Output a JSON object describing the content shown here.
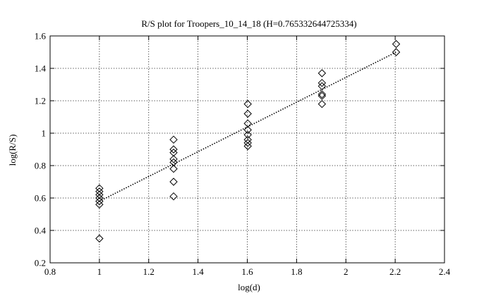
{
  "chart_data": {
    "type": "scatter",
    "title": "R/S plot for Troopers_10_14_18 (H=0.765332644725334)",
    "xlabel": "log(d)",
    "ylabel": "log(R/S)",
    "xlim": [
      0.8,
      2.4
    ],
    "ylim": [
      0.2,
      1.6
    ],
    "grid": true,
    "x_ticks": [
      0.8,
      1,
      1.2,
      1.4,
      1.6,
      1.8,
      2,
      2.2,
      2.4
    ],
    "x_tick_labels": [
      "0.8",
      "1",
      "1.2",
      "1.4",
      "1.6",
      "1.8",
      "2",
      "2.2",
      "2.4"
    ],
    "y_ticks": [
      0.2,
      0.4,
      0.6,
      0.8,
      1,
      1.2,
      1.4,
      1.6
    ],
    "y_tick_labels": [
      "0.2",
      "0.4",
      "0.6",
      "0.8",
      "1",
      "1.2",
      "1.4",
      "1.6"
    ],
    "series": [
      {
        "marker": "diamond",
        "points": [
          {
            "x": 1.0,
            "y": 0.66
          },
          {
            "x": 1.0,
            "y": 0.64
          },
          {
            "x": 1.0,
            "y": 0.62
          },
          {
            "x": 1.0,
            "y": 0.6
          },
          {
            "x": 1.0,
            "y": 0.58
          },
          {
            "x": 1.0,
            "y": 0.56
          },
          {
            "x": 1.0,
            "y": 0.35
          },
          {
            "x": 1.301,
            "y": 0.96
          },
          {
            "x": 1.301,
            "y": 0.9
          },
          {
            "x": 1.301,
            "y": 0.88
          },
          {
            "x": 1.301,
            "y": 0.84
          },
          {
            "x": 1.301,
            "y": 0.82
          },
          {
            "x": 1.301,
            "y": 0.78
          },
          {
            "x": 1.301,
            "y": 0.7
          },
          {
            "x": 1.301,
            "y": 0.61
          },
          {
            "x": 1.602,
            "y": 1.18
          },
          {
            "x": 1.602,
            "y": 1.12
          },
          {
            "x": 1.602,
            "y": 1.06
          },
          {
            "x": 1.602,
            "y": 1.02
          },
          {
            "x": 1.602,
            "y": 0.99
          },
          {
            "x": 1.602,
            "y": 0.96
          },
          {
            "x": 1.602,
            "y": 0.94
          },
          {
            "x": 1.602,
            "y": 0.92
          },
          {
            "x": 1.903,
            "y": 1.37
          },
          {
            "x": 1.903,
            "y": 1.31
          },
          {
            "x": 1.903,
            "y": 1.29
          },
          {
            "x": 1.903,
            "y": 1.24
          },
          {
            "x": 1.903,
            "y": 1.23
          },
          {
            "x": 1.903,
            "y": 1.18
          },
          {
            "x": 2.204,
            "y": 1.55
          },
          {
            "x": 2.204,
            "y": 1.5
          }
        ]
      }
    ],
    "fit_line": {
      "style": "dotted",
      "x": [
        1.0,
        2.204
      ],
      "y": [
        0.58,
        1.5
      ]
    }
  }
}
